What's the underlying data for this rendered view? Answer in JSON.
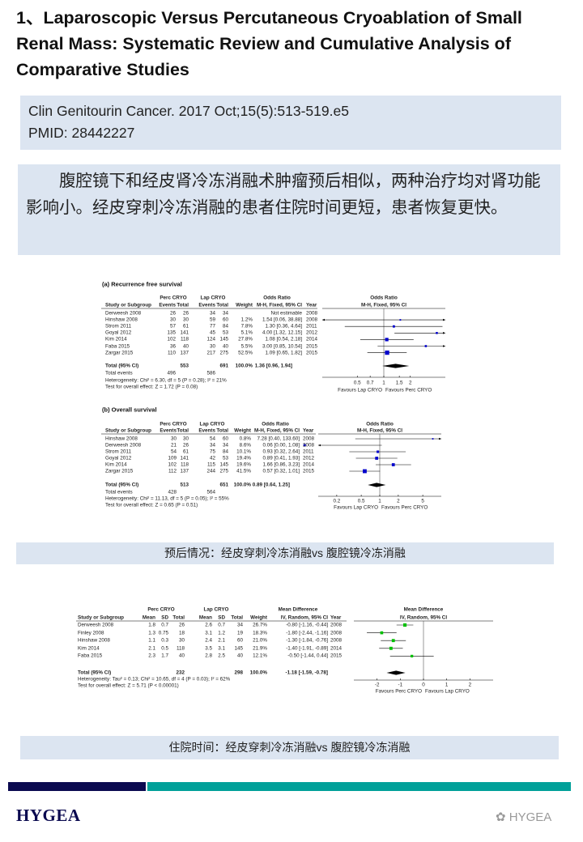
{
  "title": "1、Laparoscopic Versus Percutaneous Cryoablation of Small Renal Mass: Systematic Review and Cumulative Analysis of Comparative Studies",
  "citation": {
    "journal": "Clin Genitourin Cancer. 2017 Oct;15(5):513-519.e5",
    "pmid": "PMID: 28442227"
  },
  "summary": "腹腔镜下和经皮肾冷冻消融术肿瘤预后相似，两种治疗均对肾功能影响小。经皮穿刺冷冻消融的患者住院时间更短，患者恢复更快。",
  "caption_prognosis": "预后情况：经皮穿刺冷冻消融vs 腹腔镜冷冻消融",
  "caption_hospital": "住院时间：经皮穿刺冷冻消融vs 腹腔镜冷冻消融",
  "footer": {
    "logo": "HYGEA",
    "watermark": "HYGEA",
    "colors": {
      "navy": "#0b0a50",
      "teal": "#00a099"
    }
  },
  "chart_data": [
    {
      "type": "forest",
      "title": "(a) Recurrence free survival",
      "group1": "Perc CRYO",
      "group2": "Lap CRYO",
      "effect_header": "Odds Ratio",
      "plot_header": "Odds Ratio",
      "plot_subheader": "M-H, Fixed, 95% CI",
      "headers": [
        "Study or Subgroup",
        "Events",
        "Total",
        "Events",
        "Total",
        "Weight",
        "M-H, Fixed, 95% CI",
        "Year"
      ],
      "scale": "log",
      "xlim": [
        0.2,
        5
      ],
      "ticks": [
        "0.5",
        "0.7",
        "1",
        "1.5",
        "2"
      ],
      "marker_color": "#0000cc",
      "rows": [
        {
          "study": "Derweesh 2008",
          "events1": "26",
          "total1": "26",
          "events2": "34",
          "total2": "34",
          "weight": "",
          "ci": "Not estimable",
          "year": "2008",
          "est": null,
          "lo": null,
          "hi": null,
          "w": 0
        },
        {
          "study": "Hinshaw 2008",
          "events1": "30",
          "total1": "30",
          "events2": "59",
          "total2": "60",
          "weight": "1.2%",
          "ci": "1.54 [0.06, 38.88]",
          "year": "2008",
          "est": 1.54,
          "lo": 0.06,
          "hi": 38.88,
          "w": 1.2
        },
        {
          "study": "Strom 2011",
          "events1": "57",
          "total1": "61",
          "events2": "77",
          "total2": "84",
          "weight": "7.8%",
          "ci": "1.30 [0.36, 4.64]",
          "year": "2011",
          "est": 1.3,
          "lo": 0.36,
          "hi": 4.64,
          "w": 7.8
        },
        {
          "study": "Goyal 2012",
          "events1": "135",
          "total1": "141",
          "events2": "45",
          "total2": "53",
          "weight": "5.1%",
          "ci": "4.00 [1.32, 12.15]",
          "year": "2012",
          "est": 4.0,
          "lo": 1.32,
          "hi": 12.15,
          "w": 5.1
        },
        {
          "study": "Kim 2014",
          "events1": "102",
          "total1": "118",
          "events2": "124",
          "total2": "145",
          "weight": "27.8%",
          "ci": "1.08 [0.54, 2.18]",
          "year": "2014",
          "est": 1.08,
          "lo": 0.54,
          "hi": 2.18,
          "w": 27.8
        },
        {
          "study": "Faba 2015",
          "events1": "36",
          "total1": "40",
          "events2": "30",
          "total2": "40",
          "weight": "5.5%",
          "ci": "3.00 [0.85, 10.54]",
          "year": "2015",
          "est": 3.0,
          "lo": 0.85,
          "hi": 10.54,
          "w": 5.5
        },
        {
          "study": "Zargar 2015",
          "events1": "110",
          "total1": "137",
          "events2": "217",
          "total2": "275",
          "weight": "52.5%",
          "ci": "1.09 [0.65, 1.82]",
          "year": "2015",
          "est": 1.09,
          "lo": 0.65,
          "hi": 1.82,
          "w": 52.5
        }
      ],
      "total": {
        "label": "Total (95% CI)",
        "total1": "553",
        "total2": "691",
        "weight": "100.0%",
        "ci": "1.36 [0.96, 1.94]",
        "est": 1.36,
        "lo": 0.96,
        "hi": 1.94
      },
      "total_events": {
        "label": "Total events",
        "events1": "496",
        "events2": "586"
      },
      "heterogeneity": "Heterogeneity: Chi² = 6.30, df = 5 (P = 0.28); I² = 21%",
      "overall": "Test for overall effect: Z = 1.72 (P = 0.08)",
      "favours_left": "Favours Lap CRYO",
      "favours_right": "Favours Perc CRYO"
    },
    {
      "type": "forest",
      "title": "(b) Overall survival",
      "group1": "Perc CRYO",
      "group2": "Lap CRYO",
      "effect_header": "Odds Ratio",
      "plot_header": "Odds Ratio",
      "plot_subheader": "M-H, Fixed, 95% CI",
      "headers": [
        "Study or Subgroup",
        "Events",
        "Total",
        "Events",
        "Total",
        "Weight",
        "M-H, Fixed, 95% CI",
        "Year"
      ],
      "scale": "log",
      "xlim": [
        0.1,
        10
      ],
      "ticks": [
        "0.2",
        "0.5",
        "1",
        "2",
        "5"
      ],
      "marker_color": "#0000cc",
      "rows": [
        {
          "study": "Hinshaw 2008",
          "events1": "30",
          "total1": "30",
          "events2": "54",
          "total2": "60",
          "weight": "0.8%",
          "ci": "7.28 [0.40, 133.60]",
          "year": "2008",
          "est": 7.28,
          "lo": 0.4,
          "hi": 133.6,
          "w": 0.8
        },
        {
          "study": "Derweesh 2008",
          "events1": "21",
          "total1": "26",
          "events2": "34",
          "total2": "34",
          "weight": "8.6%",
          "ci": "0.06 [0.00, 1.08]",
          "year": "2008",
          "est": 0.06,
          "lo": 0.001,
          "hi": 1.08,
          "w": 8.6
        },
        {
          "study": "Strom 2011",
          "events1": "54",
          "total1": "61",
          "events2": "75",
          "total2": "84",
          "weight": "10.1%",
          "ci": "0.93 [0.32, 2.64]",
          "year": "2011",
          "est": 0.93,
          "lo": 0.32,
          "hi": 2.64,
          "w": 10.1
        },
        {
          "study": "Goyal 2012",
          "events1": "109",
          "total1": "141",
          "events2": "42",
          "total2": "53",
          "weight": "19.4%",
          "ci": "0.89 [0.41, 1.93]",
          "year": "2012",
          "est": 0.89,
          "lo": 0.41,
          "hi": 1.93,
          "w": 19.4
        },
        {
          "study": "Kim 2014",
          "events1": "102",
          "total1": "118",
          "events2": "115",
          "total2": "145",
          "weight": "19.6%",
          "ci": "1.66 [0.86, 3.23]",
          "year": "2014",
          "est": 1.66,
          "lo": 0.86,
          "hi": 3.23,
          "w": 19.6
        },
        {
          "study": "Zargar 2015",
          "events1": "112",
          "total1": "137",
          "events2": "244",
          "total2": "275",
          "weight": "41.5%",
          "ci": "0.57 [0.32, 1.01]",
          "year": "2015",
          "est": 0.57,
          "lo": 0.32,
          "hi": 1.01,
          "w": 41.5
        }
      ],
      "total": {
        "label": "Total (95% CI)",
        "total1": "513",
        "total2": "651",
        "weight": "100.0%",
        "ci": "0.89 [0.64, 1.25]",
        "est": 0.89,
        "lo": 0.64,
        "hi": 1.25
      },
      "total_events": {
        "label": "Total events",
        "events1": "428",
        "events2": "564"
      },
      "heterogeneity": "Heterogeneity: Chi² = 11.13, df = 5 (P = 0.05); I² = 55%",
      "overall": "Test for overall effect: Z = 0.65 (P = 0.51)",
      "favours_left": "Favours Lap CRYO",
      "favours_right": "Favours Perc CRYO"
    },
    {
      "type": "forest",
      "title": "",
      "group1": "Perc CRYO",
      "group2": "Lap CRYO",
      "effect_header": "Mean Difference",
      "plot_header": "Mean Difference",
      "plot_subheader": "IV, Random, 95% CI",
      "headers": [
        "Study or Subgroup",
        "Mean",
        "SD",
        "Total",
        "Mean",
        "SD",
        "Total",
        "Weight",
        "IV, Random, 95% CI",
        "Year"
      ],
      "scale": "linear",
      "xlim": [
        -3,
        3
      ],
      "ticks": [
        "-2",
        "-1",
        "0",
        "1",
        "2"
      ],
      "marker_color": "#00c000",
      "rows": [
        {
          "study": "Derweesh 2008",
          "mean1": "1.8",
          "sd1": "0.7",
          "total1": "26",
          "mean2": "2.6",
          "sd2": "0.7",
          "total2": "34",
          "weight": "26.7%",
          "ci": "-0.80 [-1.16, -0.44]",
          "year": "2008",
          "est": -0.8,
          "lo": -1.16,
          "hi": -0.44,
          "w": 26.7
        },
        {
          "study": "Finley 2008",
          "mean1": "1.3",
          "sd1": "0.75",
          "total1": "18",
          "mean2": "3.1",
          "sd2": "1.2",
          "total2": "19",
          "weight": "18.3%",
          "ci": "-1.80 [-2.44, -1.16]",
          "year": "2008",
          "est": -1.8,
          "lo": -2.44,
          "hi": -1.16,
          "w": 18.3
        },
        {
          "study": "Hinshaw 2008",
          "mean1": "1.1",
          "sd1": "0.3",
          "total1": "30",
          "mean2": "2.4",
          "sd2": "2.1",
          "total2": "60",
          "weight": "21.0%",
          "ci": "-1.30 [-1.84, -0.76]",
          "year": "2008",
          "est": -1.3,
          "lo": -1.84,
          "hi": -0.76,
          "w": 21.0
        },
        {
          "study": "Kim 2014",
          "mean1": "2.1",
          "sd1": "0.5",
          "total1": "118",
          "mean2": "3.5",
          "sd2": "3.1",
          "total2": "145",
          "weight": "21.9%",
          "ci": "-1.40 [-1.91, -0.89]",
          "year": "2014",
          "est": -1.4,
          "lo": -1.91,
          "hi": -0.89,
          "w": 21.9
        },
        {
          "study": "Faba 2015",
          "mean1": "2.3",
          "sd1": "1.7",
          "total1": "40",
          "mean2": "2.8",
          "sd2": "2.5",
          "total2": "40",
          "weight": "12.1%",
          "ci": "-0.50 [-1.44, 0.44]",
          "year": "2015",
          "est": -0.5,
          "lo": -1.44,
          "hi": 0.44,
          "w": 12.1
        }
      ],
      "total": {
        "label": "Total (95% CI)",
        "total1": "232",
        "total2": "298",
        "weight": "100.0%",
        "ci": "-1.18 [-1.59, -0.78]",
        "est": -1.18,
        "lo": -1.59,
        "hi": -0.78
      },
      "heterogeneity": "Heterogeneity: Tau² = 0.13; Chi² = 10.65, df = 4 (P = 0.03); I² = 62%",
      "overall": "Test for overall effect: Z = 5.71 (P < 0.00001)",
      "favours_left": "Favours Perc CRYO",
      "favours_right": "Favours Lap CRYO"
    }
  ]
}
